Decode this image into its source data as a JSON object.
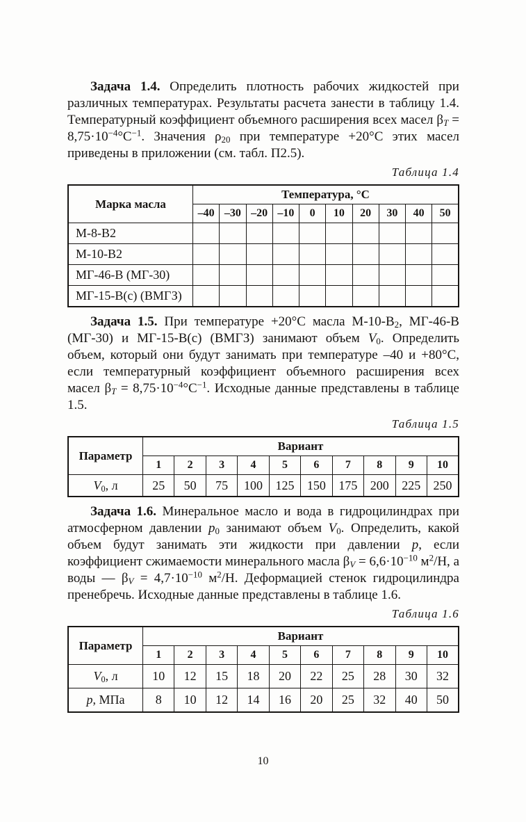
{
  "page": {
    "number": "10"
  },
  "paragraphs": [
    {
      "name": "task-1-4",
      "segments": [
        {
          "t": "b",
          "x": "Задача 1.4."
        },
        {
          "t": "n",
          "x": " Определить плотность рабочих жидкостей при различных температурах. Результаты расчета занести в таблицу 1.4. Температурный коэффициент объемного расширения всех масел β"
        },
        {
          "t": "isub",
          "x": "T"
        },
        {
          "t": "n",
          "x": " = 8,75·10"
        },
        {
          "t": "sup",
          "x": "−4"
        },
        {
          "t": "n",
          "x": "°С"
        },
        {
          "t": "sup",
          "x": "−1"
        },
        {
          "t": "n",
          "x": ". Значения ρ"
        },
        {
          "t": "sub",
          "x": "20"
        },
        {
          "t": "n",
          "x": " при температуре +20°С этих масел приведены в приложении (см. табл. П2.5)."
        }
      ]
    },
    {
      "name": "task-1-5",
      "segments": [
        {
          "t": "b",
          "x": "Задача 1.5."
        },
        {
          "t": "n",
          "x": " При температуре +20°С масла М-10-В"
        },
        {
          "t": "sub",
          "x": "2"
        },
        {
          "t": "n",
          "x": ", МГ-46-В (МГ-30) и МГ-15-В(с) (ВМГЗ) занимают объем "
        },
        {
          "t": "i",
          "x": "V"
        },
        {
          "t": "sub",
          "x": "0"
        },
        {
          "t": "n",
          "x": ". Определить объем, который они будут занимать при температуре –40 и +80°С, если температурный коэффициент объемного расширения всех масел β"
        },
        {
          "t": "isub",
          "x": "T"
        },
        {
          "t": "n",
          "x": " = 8,75·10"
        },
        {
          "t": "sup",
          "x": "−4"
        },
        {
          "t": "n",
          "x": "°С"
        },
        {
          "t": "sup",
          "x": "−1"
        },
        {
          "t": "n",
          "x": ". Исходные данные представлены в таблице 1.5."
        }
      ]
    },
    {
      "name": "task-1-6",
      "segments": [
        {
          "t": "b",
          "x": "Задача 1.6."
        },
        {
          "t": "n",
          "x": " Минеральное масло и вода в гидроцилиндрах при атмосферном давлении "
        },
        {
          "t": "i",
          "x": "p"
        },
        {
          "t": "sub",
          "x": "0"
        },
        {
          "t": "n",
          "x": " занимают объем "
        },
        {
          "t": "i",
          "x": "V"
        },
        {
          "t": "sub",
          "x": "0"
        },
        {
          "t": "n",
          "x": ". Определить, какой объем будут занимать эти жидкости при давлении "
        },
        {
          "t": "i",
          "x": "p"
        },
        {
          "t": "n",
          "x": ", если коэффициент сжимаемости минерального масла β"
        },
        {
          "t": "isub",
          "x": "V"
        },
        {
          "t": "n",
          "x": " = 6,6·10"
        },
        {
          "t": "sup",
          "x": "−10"
        },
        {
          "t": "n",
          "x": " м"
        },
        {
          "t": "sup",
          "x": "2"
        },
        {
          "t": "n",
          "x": "/Н, а воды — β"
        },
        {
          "t": "isub",
          "x": "V"
        },
        {
          "t": "n",
          "x": " = 4,7·10"
        },
        {
          "t": "sup",
          "x": "−10"
        },
        {
          "t": "n",
          "x": " м"
        },
        {
          "t": "sup",
          "x": "2"
        },
        {
          "t": "n",
          "x": "/Н. Деформацией стенок гидроцилиндра пренебречь. Исходные данные представлены в таблице 1.6."
        }
      ]
    }
  ],
  "tables": [
    {
      "caption": "Таблица 1.4",
      "corner_header": "Марка масла",
      "group_header": "Температура, °С",
      "columns": [
        "–40",
        "–30",
        "–20",
        "–10",
        "0",
        "10",
        "20",
        "30",
        "40",
        "50"
      ],
      "thick_after_columns": [
        4
      ],
      "rows": [
        {
          "label": [
            {
              "t": "n",
              "x": "М-8-В2"
            }
          ],
          "values": [
            "",
            "",
            "",
            "",
            "",
            "",
            "",
            "",
            "",
            ""
          ]
        },
        {
          "label": [
            {
              "t": "n",
              "x": "М-10-В2"
            }
          ],
          "values": [
            "",
            "",
            "",
            "",
            "",
            "",
            "",
            "",
            "",
            ""
          ]
        },
        {
          "label": [
            {
              "t": "n",
              "x": "МГ-46-В (МГ-30)"
            }
          ],
          "values": [
            "",
            "",
            "",
            "",
            "",
            "",
            "",
            "",
            "",
            ""
          ]
        },
        {
          "label": [
            {
              "t": "n",
              "x": "МГ-15-В(с) (ВМГЗ)"
            }
          ],
          "values": [
            "",
            "",
            "",
            "",
            "",
            "",
            "",
            "",
            "",
            ""
          ]
        }
      ]
    },
    {
      "caption": "Таблица 1.5",
      "corner_header": "Параметр",
      "group_header": "Вариант",
      "columns": [
        "1",
        "2",
        "3",
        "4",
        "5",
        "6",
        "7",
        "8",
        "9",
        "10"
      ],
      "thick_after_columns": [
        2,
        3
      ],
      "rows": [
        {
          "label": [
            {
              "t": "i",
              "x": "V"
            },
            {
              "t": "sub",
              "x": "0"
            },
            {
              "t": "n",
              "x": ", л"
            }
          ],
          "values": [
            "25",
            "50",
            "75",
            "100",
            "125",
            "150",
            "175",
            "200",
            "225",
            "250"
          ]
        }
      ]
    },
    {
      "caption": "Таблица 1.6",
      "corner_header": "Параметр",
      "group_header": "Вариант",
      "columns": [
        "1",
        "2",
        "3",
        "4",
        "5",
        "6",
        "7",
        "8",
        "9",
        "10"
      ],
      "thick_after_columns": [],
      "rows": [
        {
          "label": [
            {
              "t": "i",
              "x": "V"
            },
            {
              "t": "sub",
              "x": "0"
            },
            {
              "t": "n",
              "x": ", л"
            }
          ],
          "values": [
            "10",
            "12",
            "15",
            "18",
            "20",
            "22",
            "25",
            "28",
            "30",
            "32"
          ]
        },
        {
          "label": [
            {
              "t": "i",
              "x": "p"
            },
            {
              "t": "n",
              "x": ", МПа"
            }
          ],
          "values": [
            "8",
            "10",
            "12",
            "14",
            "16",
            "20",
            "25",
            "32",
            "40",
            "50"
          ]
        }
      ]
    }
  ]
}
